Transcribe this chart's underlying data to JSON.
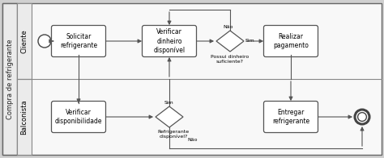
{
  "pool_label": "Compra de refrigerante",
  "lane1_label": "Cliente",
  "lane2_label": "Balconista",
  "font_size": 5.5,
  "pool_bg": "#f8f8f8",
  "lane_header_bg": "#ebebeb",
  "box_fill": "#ffffff",
  "box_edge": "#555555",
  "arrow_color": "#555555",
  "line_color": "#888888"
}
